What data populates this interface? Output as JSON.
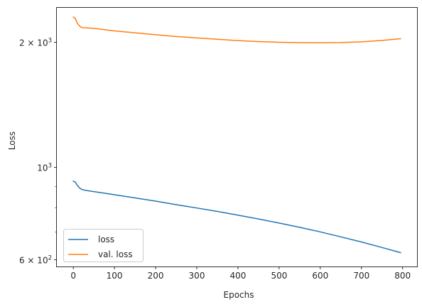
{
  "chart_data": {
    "type": "line",
    "xlabel": "Epochs",
    "ylabel": "Loss",
    "xlim": [
      -40,
      835
    ],
    "ylim": [
      578,
      2420
    ],
    "y_scale": "log",
    "x_ticks": [
      {
        "value": 0,
        "label": "0"
      },
      {
        "value": 100,
        "label": "100"
      },
      {
        "value": 200,
        "label": "200"
      },
      {
        "value": 300,
        "label": "300"
      },
      {
        "value": 400,
        "label": "400"
      },
      {
        "value": 500,
        "label": "500"
      },
      {
        "value": 600,
        "label": "600"
      },
      {
        "value": 700,
        "label": "700"
      },
      {
        "value": 800,
        "label": "800"
      }
    ],
    "y_ticks": [
      {
        "value": 600,
        "label": "6 × 10",
        "exp": "2"
      },
      {
        "value": 1000,
        "label": "10",
        "exp": "3"
      },
      {
        "value": 2000,
        "label": "2 × 10",
        "exp": "3"
      }
    ],
    "y_minor_ticks": [
      700,
      800,
      900
    ],
    "legend_position": "lower-left",
    "series": [
      {
        "name": "loss",
        "color": "#1f77b4",
        "x": [
          0,
          5,
          10,
          15,
          20,
          25,
          30,
          50,
          100,
          150,
          200,
          250,
          300,
          350,
          400,
          450,
          500,
          550,
          600,
          650,
          700,
          750,
          795
        ],
        "y": [
          927,
          922,
          905,
          893,
          886,
          883,
          881,
          875,
          860,
          845,
          830,
          814,
          799,
          784,
          768,
          752,
          735,
          718,
          700,
          681,
          662,
          642,
          624
        ]
      },
      {
        "name": "val. loss",
        "color": "#ff7f0e",
        "x": [
          0,
          5,
          10,
          15,
          20,
          25,
          30,
          50,
          100,
          150,
          200,
          250,
          300,
          350,
          400,
          450,
          500,
          550,
          600,
          650,
          700,
          750,
          795
        ],
        "y": [
          2300,
          2280,
          2220,
          2190,
          2170,
          2168,
          2167,
          2160,
          2130,
          2108,
          2085,
          2065,
          2048,
          2033,
          2018,
          2008,
          2000,
          1996,
          1995,
          1997,
          2005,
          2020,
          2040
        ]
      }
    ]
  }
}
